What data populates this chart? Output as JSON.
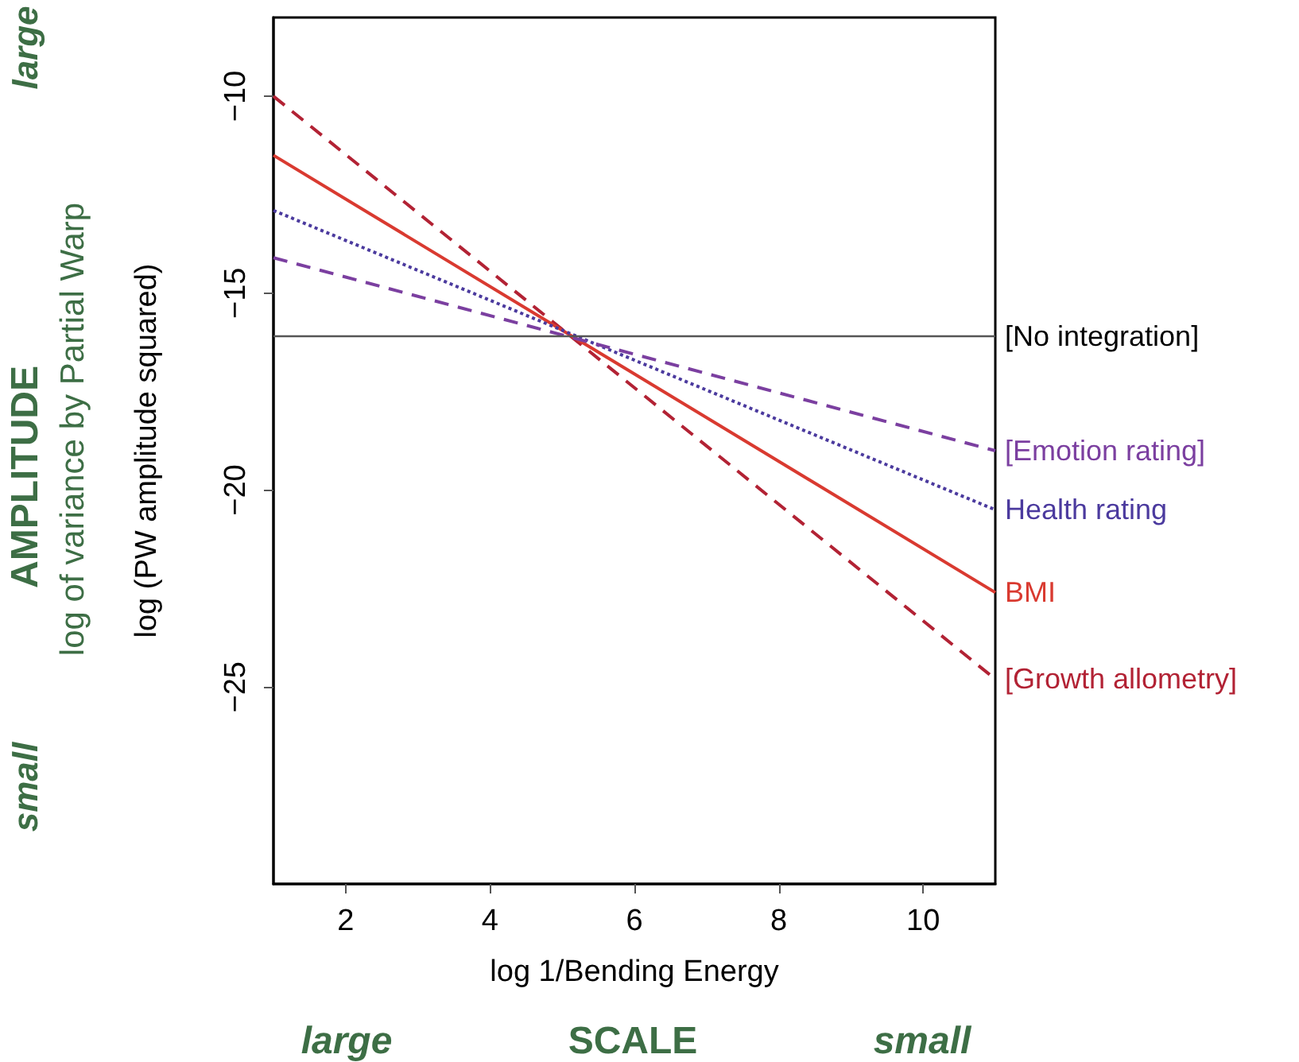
{
  "chart_data": {
    "type": "line",
    "xlabel": "log 1/Bending Energy",
    "ylabel": "log (PW amplitude squared)",
    "x": [
      1,
      11
    ],
    "xlim": [
      1,
      11
    ],
    "xticks": [
      2,
      4,
      6,
      8,
      10
    ],
    "ylim": [
      -30,
      -8
    ],
    "yticks": [
      -10,
      -15,
      -20,
      -25
    ],
    "series": [
      {
        "name": "[Growth allometry]",
        "color": "#b22234",
        "line_style": "dashed",
        "values": [
          -10,
          -24.8
        ]
      },
      {
        "name": "BMI",
        "color": "#d93a30",
        "line_style": "solid",
        "values": [
          -11.5,
          -22.6
        ]
      },
      {
        "name": "Health rating",
        "color": "#4b3a9e",
        "line_style": "dotted",
        "values": [
          -12.9,
          -20.5
        ]
      },
      {
        "name": "[Emotion rating]",
        "color": "#7b3fa0",
        "line_style": "dashed",
        "values": [
          -14.1,
          -19.0
        ]
      }
    ],
    "ref_lines": [
      {
        "axis": "y",
        "value": -16.1,
        "label": "[No integration]",
        "color": "#555555"
      }
    ],
    "annotations": [
      "large",
      "AMPLITUDE",
      "log of variance by Partial Warp",
      "small",
      "large",
      "SCALE",
      "small"
    ],
    "marker": "none",
    "grid": false,
    "legend": false
  }
}
